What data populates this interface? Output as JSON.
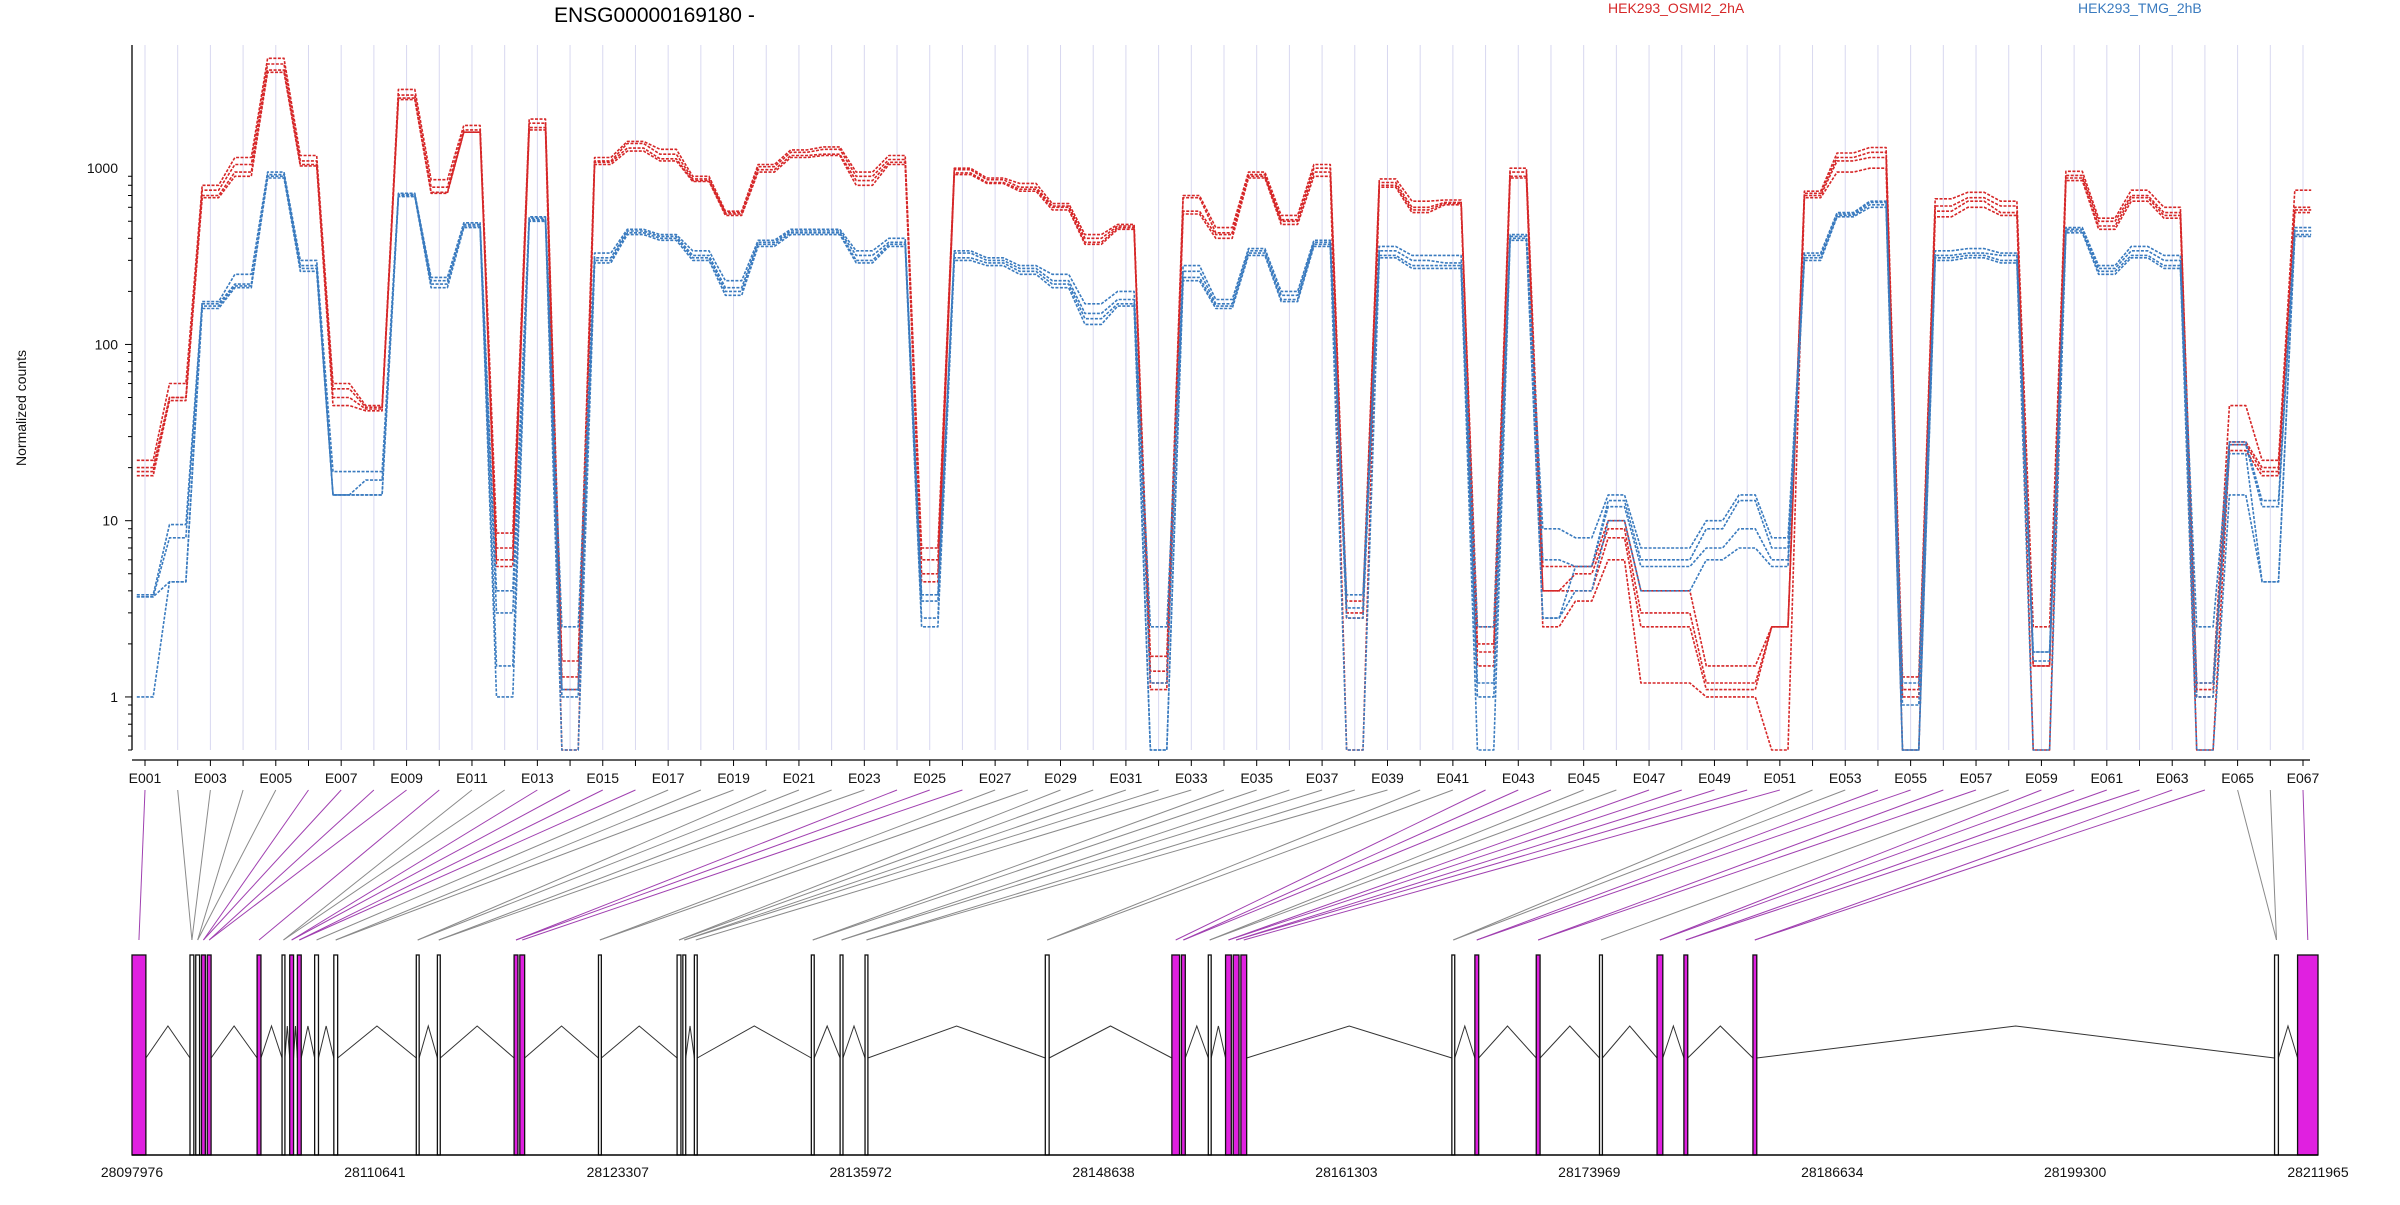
{
  "chart_data": {
    "type": "line",
    "title": "ENSG00000169180 -",
    "ylabel": "Normalized counts",
    "xlabel": "",
    "yscale": "log",
    "ylim": [
      0.5,
      5000
    ],
    "yticks": [
      "1",
      "10",
      "100",
      "1000"
    ],
    "grid": true,
    "legend_position": "top",
    "colors": {
      "a": "#d62728",
      "b": "#3a7bbf",
      "exon": "#e020e0",
      "intron": "#333333",
      "grid": "#d8d8f0",
      "connector": "#a040b0"
    },
    "legend": [
      {
        "label": "HEK293_OSMI2_2hA",
        "color": "#d62728"
      },
      {
        "label": "HEK293_TMG_2hB",
        "color": "#3a7bbf"
      }
    ],
    "categories": [
      "E001",
      "E002",
      "E003",
      "E004",
      "E005",
      "E006",
      "E007",
      "E008",
      "E009",
      "E010",
      "E011",
      "E012",
      "E013",
      "E014",
      "E015",
      "E016",
      "E017",
      "E018",
      "E019",
      "E020",
      "E021",
      "E022",
      "E023",
      "E024",
      "E025",
      "E026",
      "E027",
      "E028",
      "E029",
      "E030",
      "E031",
      "E032",
      "E033",
      "E034",
      "E035",
      "E036",
      "E037",
      "E038",
      "E039",
      "E040",
      "E041",
      "E042",
      "E043",
      "E044",
      "E045",
      "E046",
      "E047",
      "E048",
      "E049",
      "E050",
      "E051",
      "E052",
      "E053",
      "E054",
      "E055",
      "E056",
      "E057",
      "E058",
      "E059",
      "E060",
      "E061",
      "E062",
      "E063",
      "E064",
      "E065",
      "E066",
      "E067"
    ],
    "xtick_labels": [
      "E001",
      "E003",
      "E005",
      "E007",
      "E009",
      "E011",
      "E013",
      "E015",
      "E017",
      "E019",
      "E021",
      "E023",
      "E025",
      "E027",
      "E029",
      "E031",
      "E033",
      "E035",
      "E037",
      "E039",
      "E041",
      "E043",
      "E045",
      "E047",
      "E049",
      "E051",
      "E053",
      "E055",
      "E057",
      "E059",
      "E061",
      "E063",
      "E065",
      "E067"
    ],
    "series": [
      {
        "group": "HEK293_OSMI2_2hA",
        "values": [
          22,
          60,
          800,
          1150,
          4200,
          1180,
          60,
          45,
          2800,
          860,
          1750,
          8.5,
          1900,
          1.6,
          1150,
          1420,
          1280,
          900,
          570,
          1050,
          1270,
          1320,
          950,
          1180,
          7,
          1000,
          880,
          820,
          630,
          420,
          480,
          1.7,
          700,
          460,
          950,
          540,
          1050,
          3.5,
          870,
          650,
          660,
          2.5,
          1000,
          5.5,
          5.5,
          10,
          4,
          4,
          1.5,
          1.5,
          2.5,
          740,
          1220,
          1310,
          1.3,
          670,
          730,
          650,
          2.5,
          960,
          520,
          750,
          600,
          1.2,
          45,
          22,
          750
        ]
      },
      {
        "group": "HEK293_OSMI2_2hA",
        "values": [
          20,
          50,
          750,
          1050,
          3900,
          1100,
          56,
          44,
          2600,
          780,
          1650,
          7,
          1800,
          1.3,
          1100,
          1380,
          1200,
          870,
          560,
          1020,
          1230,
          1280,
          900,
          1120,
          6,
          980,
          860,
          780,
          610,
          400,
          470,
          1.4,
          680,
          430,
          920,
          510,
          1000,
          3,
          830,
          600,
          640,
          2,
          950,
          4,
          5,
          9,
          3,
          3,
          1.2,
          1.2,
          2.5,
          720,
          1150,
          1230,
          1.1,
          610,
          680,
          610,
          1.5,
          910,
          500,
          700,
          560,
          1.1,
          28,
          20,
          600
        ]
      },
      {
        "group": "HEK293_OSMI2_2hA",
        "values": [
          18,
          48,
          700,
          950,
          3600,
          1050,
          50,
          43,
          2500,
          730,
          1600,
          6,
          1700,
          1.1,
          1080,
          1300,
          1130,
          850,
          550,
          980,
          1180,
          1200,
          850,
          1080,
          5,
          940,
          830,
          760,
          600,
          380,
          460,
          1.2,
          570,
          420,
          900,
          500,
          950,
          2.8,
          800,
          580,
          630,
          1.8,
          900,
          4,
          4,
          8,
          2.5,
          2.5,
          1.1,
          1.1,
          2.5,
          700,
          1100,
          1150,
          1,
          570,
          650,
          560,
          1.5,
          880,
          470,
          680,
          540,
          1,
          27,
          19,
          580
        ]
      },
      {
        "group": "HEK293_OSMI2_2hA",
        "values": [
          19,
          50,
          680,
          900,
          3500,
          1030,
          45,
          42,
          2450,
          720,
          1600,
          5.5,
          1650,
          0.5,
          1050,
          1250,
          1100,
          840,
          540,
          950,
          1150,
          1180,
          800,
          1050,
          4.5,
          920,
          820,
          740,
          580,
          370,
          450,
          1.1,
          550,
          400,
          880,
          480,
          900,
          0.5,
          780,
          560,
          620,
          1.5,
          880,
          2.5,
          3.5,
          6,
          1.2,
          1.2,
          1,
          1,
          0.5,
          680,
          950,
          1000,
          0.5,
          530,
          600,
          540,
          0.5,
          850,
          450,
          650,
          520,
          0.5,
          25,
          18,
          560
        ]
      },
      {
        "group": "HEK293_TMG_2hB",
        "values": [
          3.8,
          9.5,
          175,
          250,
          950,
          300,
          19,
          19,
          720,
          240,
          490,
          4,
          530,
          2.5,
          330,
          450,
          420,
          340,
          230,
          390,
          450,
          450,
          340,
          400,
          3.8,
          340,
          310,
          280,
          250,
          170,
          200,
          2.5,
          280,
          180,
          350,
          200,
          390,
          3.8,
          360,
          320,
          320,
          2.5,
          420,
          9,
          8,
          14,
          7,
          7,
          10,
          14,
          8,
          330,
          560,
          650,
          1.2,
          340,
          350,
          330,
          1.8,
          460,
          280,
          360,
          320,
          2.5,
          28,
          13,
          460
        ]
      },
      {
        "group": "HEK293_TMG_2hB",
        "values": [
          3.7,
          8,
          170,
          220,
          920,
          280,
          14,
          17,
          710,
          230,
          480,
          3,
          520,
          1.1,
          310,
          440,
          410,
          320,
          210,
          380,
          440,
          440,
          320,
          380,
          3.5,
          330,
          300,
          270,
          230,
          150,
          180,
          1.2,
          260,
          170,
          340,
          190,
          380,
          3.2,
          340,
          300,
          290,
          1.2,
          410,
          6,
          5.5,
          13,
          6,
          6,
          9,
          13,
          7,
          320,
          550,
          640,
          0.9,
          320,
          330,
          320,
          1.8,
          450,
          270,
          340,
          300,
          1.2,
          27,
          12,
          440
        ]
      },
      {
        "group": "HEK293_TMG_2hB",
        "values": [
          3.7,
          4.5,
          165,
          215,
          900,
          270,
          14,
          14,
          700,
          220,
          470,
          1.5,
          510,
          1,
          300,
          430,
          400,
          310,
          200,
          370,
          430,
          430,
          300,
          370,
          2.8,
          310,
          290,
          260,
          220,
          140,
          170,
          0.5,
          240,
          165,
          330,
          180,
          370,
          2.8,
          320,
          280,
          280,
          1,
          400,
          2.8,
          5.5,
          12,
          5.5,
          5.5,
          7,
          9,
          6,
          310,
          540,
          620,
          0.5,
          310,
          320,
          300,
          1.6,
          440,
          260,
          320,
          280,
          1,
          24,
          4.5,
          420
        ]
      },
      {
        "group": "HEK293_TMG_2hB",
        "values": [
          1,
          4.5,
          160,
          210,
          880,
          260,
          14,
          14,
          690,
          210,
          460,
          1,
          500,
          0.5,
          290,
          420,
          390,
          300,
          190,
          360,
          420,
          420,
          290,
          360,
          2.5,
          300,
          280,
          250,
          210,
          130,
          165,
          0.5,
          230,
          160,
          320,
          175,
          360,
          0.5,
          310,
          270,
          270,
          0.5,
          390,
          2.8,
          4,
          10,
          4,
          4,
          6,
          7,
          5.5,
          300,
          530,
          600,
          0.5,
          300,
          310,
          290,
          0.5,
          430,
          250,
          310,
          270,
          0.5,
          14,
          4.5,
          410
        ]
      }
    ],
    "genomic_tick_labels": [
      "28097976",
      "28110641",
      "28123307",
      "28135972",
      "28148638",
      "28161303",
      "28173969",
      "28186634",
      "28199300",
      "28211965"
    ],
    "genome_range": [
      28097976,
      28211965
    ],
    "exon_coords": [
      {
        "s": 28097976,
        "e": 28098700,
        "hl": true
      },
      {
        "s": 28101000,
        "e": 28101200,
        "hl": false
      },
      {
        "s": 28101300,
        "e": 28101500,
        "hl": false
      },
      {
        "s": 28101600,
        "e": 28101800,
        "hl": true
      },
      {
        "s": 28101900,
        "e": 28102100,
        "hl": true
      },
      {
        "s": 28104500,
        "e": 28104700,
        "hl": true
      },
      {
        "s": 28105800,
        "e": 28105950,
        "hl": false
      },
      {
        "s": 28106200,
        "e": 28106400,
        "hl": true
      },
      {
        "s": 28106600,
        "e": 28106800,
        "hl": true
      },
      {
        "s": 28107500,
        "e": 28107700,
        "hl": false
      },
      {
        "s": 28108500,
        "e": 28108700,
        "hl": false
      },
      {
        "s": 28112800,
        "e": 28112950,
        "hl": false
      },
      {
        "s": 28113900,
        "e": 28114050,
        "hl": false
      },
      {
        "s": 28117900,
        "e": 28118100,
        "hl": true
      },
      {
        "s": 28118200,
        "e": 28118450,
        "hl": true
      },
      {
        "s": 28122300,
        "e": 28122450,
        "hl": false
      },
      {
        "s": 28126400,
        "e": 28126600,
        "hl": false
      },
      {
        "s": 28126700,
        "e": 28126850,
        "hl": false
      },
      {
        "s": 28127300,
        "e": 28127450,
        "hl": false
      },
      {
        "s": 28133400,
        "e": 28133550,
        "hl": false
      },
      {
        "s": 28134900,
        "e": 28135050,
        "hl": false
      },
      {
        "s": 28136200,
        "e": 28136350,
        "hl": false
      },
      {
        "s": 28145600,
        "e": 28145800,
        "hl": false
      },
      {
        "s": 28152200,
        "e": 28152600,
        "hl": true
      },
      {
        "s": 28152700,
        "e": 28152900,
        "hl": true
      },
      {
        "s": 28154100,
        "e": 28154250,
        "hl": false
      },
      {
        "s": 28155000,
        "e": 28155300,
        "hl": true
      },
      {
        "s": 28155400,
        "e": 28155700,
        "hl": true
      },
      {
        "s": 28155800,
        "e": 28156100,
        "hl": true
      },
      {
        "s": 28166800,
        "e": 28166950,
        "hl": false
      },
      {
        "s": 28168000,
        "e": 28168200,
        "hl": true
      },
      {
        "s": 28171200,
        "e": 28171400,
        "hl": true
      },
      {
        "s": 28174500,
        "e": 28174650,
        "hl": false
      },
      {
        "s": 28177500,
        "e": 28177800,
        "hl": true
      },
      {
        "s": 28178900,
        "e": 28179100,
        "hl": true
      },
      {
        "s": 28182500,
        "e": 28182700,
        "hl": true
      },
      {
        "s": 28209700,
        "e": 28209900,
        "hl": false
      },
      {
        "s": 28210900,
        "e": 28211965,
        "hl": true
      }
    ]
  }
}
